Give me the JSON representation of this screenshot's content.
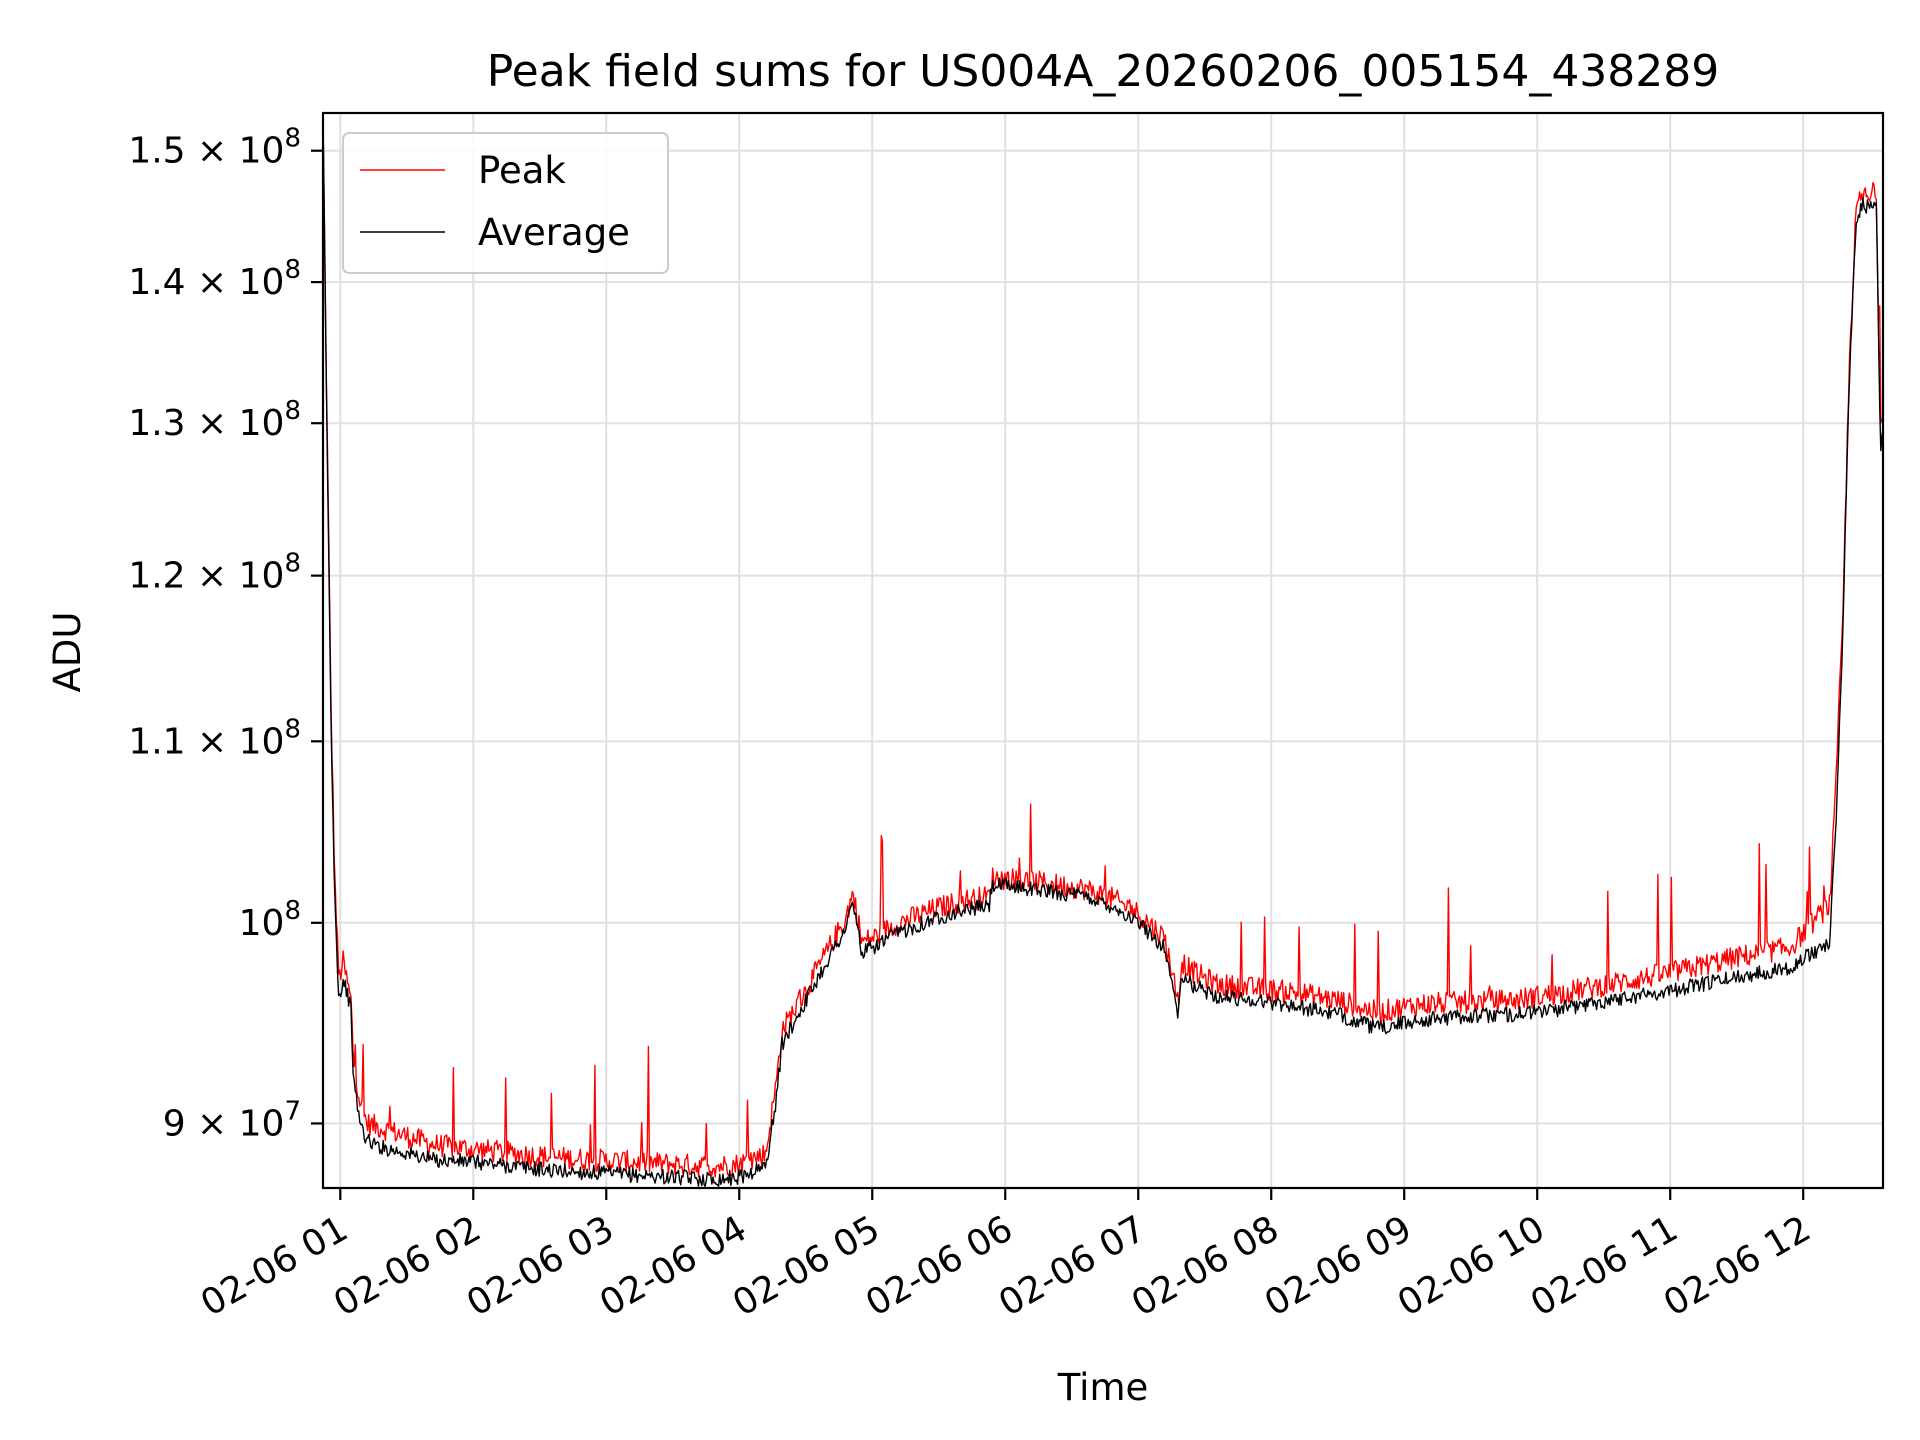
{
  "chart_data": {
    "type": "line",
    "title": "Peak field sums for US004A_20260206_005154_438289",
    "xlabel": "Time",
    "ylabel": "ADU",
    "yscale": "log",
    "ylim": [
      87000000,
      153000000
    ],
    "xlim": [
      0.87,
      12.6
    ],
    "grid": true,
    "legend_position": "upper-left",
    "x_ticks": [
      {
        "value": 1,
        "label": "02-06 01"
      },
      {
        "value": 2,
        "label": "02-06 02"
      },
      {
        "value": 3,
        "label": "02-06 03"
      },
      {
        "value": 4,
        "label": "02-06 04"
      },
      {
        "value": 5,
        "label": "02-06 05"
      },
      {
        "value": 6,
        "label": "02-06 06"
      },
      {
        "value": 7,
        "label": "02-06 07"
      },
      {
        "value": 8,
        "label": "02-06 08"
      },
      {
        "value": 9,
        "label": "02-06 09"
      },
      {
        "value": 10,
        "label": "02-06 10"
      },
      {
        "value": 11,
        "label": "02-06 11"
      },
      {
        "value": 12,
        "label": "02-06 12"
      }
    ],
    "y_ticks": [
      {
        "value": 90000000,
        "mantissa": "9",
        "exp": "7"
      },
      {
        "value": 100000000,
        "mantissa": "",
        "exp": "8"
      },
      {
        "value": 110000000,
        "mantissa": "1.1",
        "exp": "8"
      },
      {
        "value": 120000000,
        "mantissa": "1.2",
        "exp": "8"
      },
      {
        "value": 130000000,
        "mantissa": "1.3",
        "exp": "8"
      },
      {
        "value": 140000000,
        "mantissa": "1.4",
        "exp": "8"
      },
      {
        "value": 150000000,
        "mantissa": "1.5",
        "exp": "8"
      }
    ],
    "series": [
      {
        "name": "Peak",
        "color": "#ff0000",
        "x": [
          0.87,
          0.9,
          0.93,
          0.96,
          0.99,
          1.02,
          1.05,
          1.08,
          1.1,
          1.15,
          1.2,
          1.3,
          1.5,
          1.7,
          2.0,
          2.3,
          2.6,
          2.9,
          3.2,
          3.5,
          3.8,
          4.0,
          4.2,
          4.28,
          4.32,
          4.5,
          4.7,
          4.8,
          4.85,
          4.88,
          4.92,
          5.0,
          5.2,
          5.5,
          5.7,
          5.88,
          5.9,
          6.1,
          6.3,
          6.6,
          6.8,
          7.0,
          7.2,
          7.3,
          7.33,
          7.4,
          7.6,
          7.9,
          8.2,
          8.5,
          8.8,
          9.1,
          9.4,
          9.8,
          10.2,
          10.6,
          11.0,
          11.5,
          11.9,
          12.2,
          12.25,
          12.3,
          12.35,
          12.4,
          12.45,
          12.5,
          12.55,
          12.58,
          12.6
        ],
        "y": [
          152500000,
          130000000,
          112000000,
          102000000,
          97000000,
          98000000,
          97000000,
          96000000,
          93000000,
          91000000,
          90000000,
          89800000,
          89400000,
          89000000,
          88800000,
          88600000,
          88400000,
          88300000,
          88200000,
          88100000,
          88000000,
          88100000,
          88600000,
          92000000,
          94500000,
          96500000,
          99000000,
          100200000,
          101500000,
          100800000,
          99000000,
          99200000,
          100000000,
          100800000,
          101200000,
          101400000,
          102400000,
          102300000,
          102100000,
          101800000,
          101300000,
          100500000,
          99200000,
          96000000,
          98000000,
          97500000,
          96800000,
          96600000,
          96400000,
          96000000,
          95400000,
          95800000,
          95900000,
          96000000,
          96400000,
          96900000,
          97400000,
          98200000,
          98700000,
          101000000,
          108000000,
          118000000,
          135000000,
          145600000,
          146500000,
          146200000,
          146600000,
          130000000,
          131000000
        ]
      },
      {
        "name": "Average",
        "color": "#000000",
        "x": [
          0.87,
          0.9,
          0.93,
          0.96,
          0.99,
          1.02,
          1.05,
          1.08,
          1.1,
          1.15,
          1.2,
          1.3,
          1.5,
          1.7,
          2.0,
          2.3,
          2.6,
          2.9,
          3.2,
          3.5,
          3.8,
          4.0,
          4.2,
          4.28,
          4.32,
          4.5,
          4.7,
          4.8,
          4.85,
          4.88,
          4.92,
          5.0,
          5.2,
          5.5,
          5.7,
          5.88,
          5.9,
          6.1,
          6.3,
          6.6,
          6.8,
          7.0,
          7.2,
          7.3,
          7.33,
          7.4,
          7.6,
          7.9,
          8.2,
          8.5,
          8.8,
          9.1,
          9.4,
          9.8,
          10.2,
          10.6,
          11.0,
          11.5,
          11.9,
          12.2,
          12.25,
          12.3,
          12.35,
          12.4,
          12.45,
          12.5,
          12.55,
          12.58,
          12.6
        ],
        "y": [
          152000000,
          129000000,
          111000000,
          101000000,
          96000000,
          97000000,
          96500000,
          95500000,
          92000000,
          90000000,
          89200000,
          88900000,
          88600000,
          88300000,
          88200000,
          88000000,
          87800000,
          87700000,
          87600000,
          87500000,
          87400000,
          87500000,
          88000000,
          91200000,
          93800000,
          96000000,
          98500000,
          99700000,
          101000000,
          100200000,
          98400000,
          98700000,
          99500000,
          100300000,
          100700000,
          100900000,
          102000000,
          101900000,
          101700000,
          101400000,
          100900000,
          100000000,
          98700000,
          95300000,
          97200000,
          96800000,
          96200000,
          96000000,
          95700000,
          95300000,
          94600000,
          95000000,
          95200000,
          95300000,
          95600000,
          96100000,
          96500000,
          97200000,
          97700000,
          99000000,
          106000000,
          117000000,
          134000000,
          145000000,
          145800000,
          145500000,
          145900000,
          128000000,
          129500000
        ]
      }
    ]
  }
}
